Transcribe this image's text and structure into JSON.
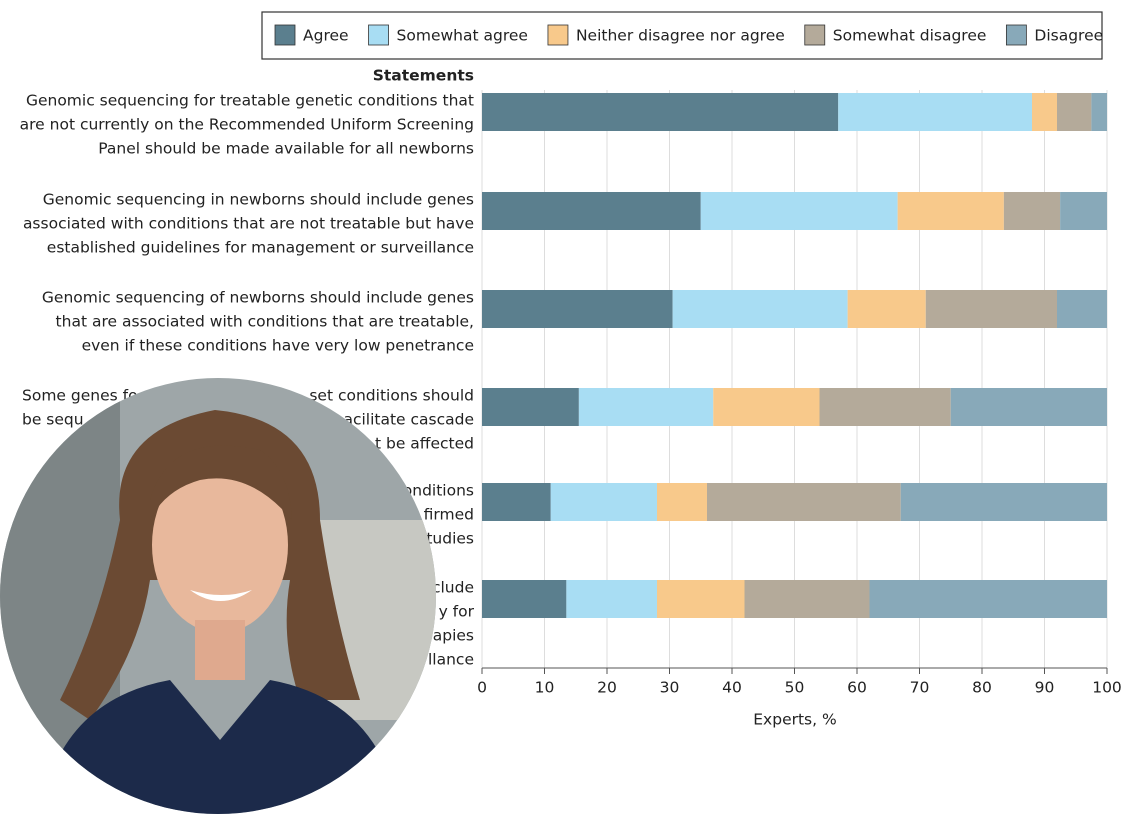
{
  "chart_data": {
    "type": "stacked-barh",
    "y_label": "Statements",
    "x_label": "Experts, %",
    "xlim": [
      0,
      100
    ],
    "xticks": [
      0,
      10,
      20,
      30,
      40,
      50,
      60,
      70,
      80,
      90,
      100
    ],
    "grid": true,
    "legend": "top",
    "categories": [
      [
        "Genomic sequencing for treatable genetic conditions that",
        "are not currently on the Recommended Uniform Screening",
        "Panel should be made available for all newborns"
      ],
      [
        "Genomic sequencing in newborns should include genes",
        "associated with conditions that are not treatable but have",
        "established guidelines for management or surveillance"
      ],
      [
        "Genomic sequencing of newborns should include genes",
        "that are associated with conditions that are treatable,",
        "even  if these conditions have very low penetrance"
      ],
      [
        [
          "Some genes fo",
          "set conditions should"
        ],
        [
          "be sequ",
          "acilitate cascade"
        ],
        "t be affected"
      ],
      [
        "onditions",
        "firmed",
        "tudies"
      ],
      [
        "clude",
        "y for",
        "apies",
        "llance"
      ]
    ],
    "series": [
      {
        "name": "Agree",
        "color": "#5b7f8e",
        "values": [
          57,
          35,
          30.5,
          15.5,
          11,
          13.5
        ]
      },
      {
        "name": "Somewhat agree",
        "color": "#a8ddf3",
        "values": [
          31,
          31.5,
          28,
          21.5,
          17,
          14.5
        ]
      },
      {
        "name": "Neither disagree nor agree",
        "color": "#f8c98b",
        "values": [
          4,
          17,
          12.5,
          17,
          8,
          14
        ]
      },
      {
        "name": "Somewhat disagree",
        "color": "#b4aa9a",
        "values": [
          5.5,
          9,
          21,
          21,
          31,
          20
        ]
      },
      {
        "name": "Disagree",
        "color": "#88a9b9",
        "values": [
          2.5,
          7.5,
          8,
          25,
          33,
          38
        ]
      }
    ]
  }
}
